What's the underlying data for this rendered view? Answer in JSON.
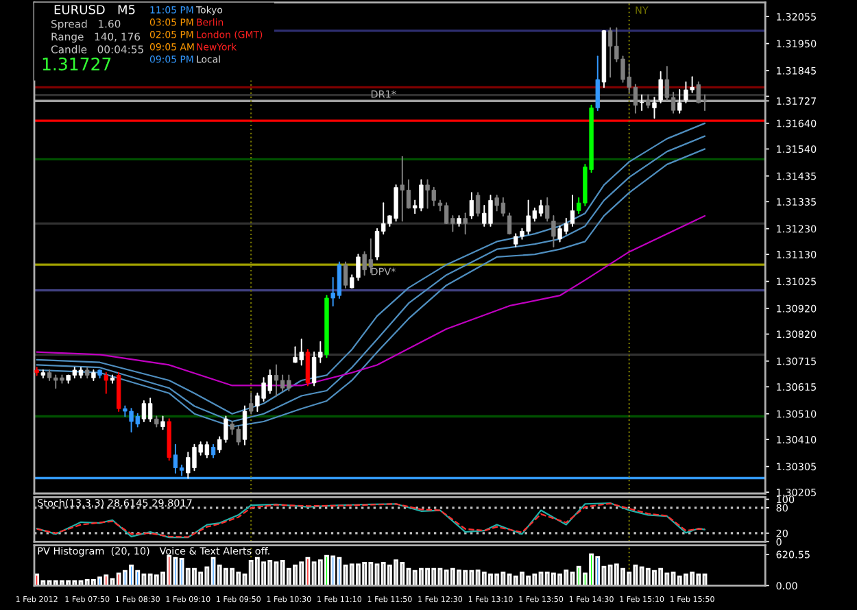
{
  "chart_data": [
    {
      "type": "candlestick",
      "tick_labels": "y",
      "annotations": [
        "EURUSD   M5",
        "Spread   1.60",
        "Range   140, 176",
        "Candle   00:04:55",
        "1.31727",
        "11:05 PM",
        "Tokyo",
        "03:05 PM",
        "Berlin",
        "02:05 PM",
        "London (GMT)",
        "09:05 AM",
        "NewYork",
        "09:05 PM",
        "Local"
      ],
      "x": [
        "2012-02-01T07:10",
        "2012-02-01T07:15",
        "2012-02-01T07:20",
        "2012-02-01T07:25",
        "2012-02-01T07:30",
        "2012-02-01T07:35",
        "2012-02-01T07:40",
        "2012-02-01T07:45",
        "2012-02-01T07:50",
        "2012-02-01T07:55",
        "2012-02-01T08:00",
        "2012-02-01T08:05",
        "2012-02-01T08:10",
        "2012-02-01T08:15",
        "2012-02-01T08:20",
        "2012-02-01T08:25",
        "2012-02-01T08:30",
        "2012-02-01T08:35",
        "2012-02-01T08:40",
        "2012-02-01T08:45",
        "2012-02-01T08:50",
        "2012-02-01T08:55",
        "2012-02-01T09:00",
        "2012-02-01T09:05",
        "2012-02-01T09:10",
        "2012-02-01T09:15",
        "2012-02-01T09:20",
        "2012-02-01T09:25",
        "2012-02-01T09:30",
        "2012-02-01T09:35",
        "2012-02-01T09:40",
        "2012-02-01T09:45",
        "2012-02-01T09:50",
        "2012-02-01T09:55",
        "2012-02-01T10:00",
        "2012-02-01T10:05",
        "2012-02-01T10:10",
        "2012-02-01T10:15",
        "2012-02-01T10:20",
        "2012-02-01T10:25",
        "2012-02-01T10:30",
        "2012-02-01T10:35",
        "2012-02-01T10:40",
        "2012-02-01T10:45",
        "2012-02-01T10:50",
        "2012-02-01T10:55",
        "2012-02-01T11:00",
        "2012-02-01T11:05",
        "2012-02-01T11:10",
        "2012-02-01T11:15",
        "2012-02-01T11:20",
        "2012-02-01T11:25",
        "2012-02-01T11:30",
        "2012-02-01T11:35",
        "2012-02-01T11:40",
        "2012-02-01T11:45",
        "2012-02-01T11:50",
        "2012-02-01T11:55",
        "2012-02-01T12:00",
        "2012-02-01T12:05",
        "2012-02-01T12:10",
        "2012-02-01T12:15",
        "2012-02-01T12:20",
        "2012-02-01T12:25",
        "2012-02-01T12:30",
        "2012-02-01T12:35",
        "2012-02-01T12:40",
        "2012-02-01T12:45",
        "2012-02-01T12:50",
        "2012-02-01T12:55",
        "2012-02-01T13:00",
        "2012-02-01T13:05",
        "2012-02-01T13:10",
        "2012-02-01T13:15",
        "2012-02-01T13:20",
        "2012-02-01T13:25",
        "2012-02-01T13:30",
        "2012-02-01T13:35",
        "2012-02-01T13:40",
        "2012-02-01T13:45",
        "2012-02-01T13:50",
        "2012-02-01T13:55",
        "2012-02-01T14:00",
        "2012-02-01T14:05",
        "2012-02-01T14:10",
        "2012-02-01T14:15",
        "2012-02-01T14:20",
        "2012-02-01T14:25",
        "2012-02-01T14:30",
        "2012-02-01T14:35",
        "2012-02-01T14:40",
        "2012-02-01T14:45",
        "2012-02-01T14:50",
        "2012-02-01T14:55",
        "2012-02-01T15:00",
        "2012-02-01T15:05",
        "2012-02-01T15:10",
        "2012-02-01T15:15",
        "2012-02-01T15:20",
        "2012-02-01T15:25",
        "2012-02-01T15:30",
        "2012-02-01T15:35",
        "2012-02-01T15:40",
        "2012-02-01T15:45",
        "2012-02-01T15:50",
        "2012-02-01T15:55",
        "2012-02-01T16:00"
      ],
      "ohlc": [
        [
          1.3068,
          1.3069,
          1.3066,
          1.3067
        ],
        [
          1.3066,
          1.3068,
          1.3065,
          1.3067
        ],
        [
          1.3067,
          1.3068,
          1.3064,
          1.3065
        ],
        [
          1.3065,
          1.3066,
          1.3061,
          1.3064
        ],
        [
          1.3065,
          1.3066,
          1.3063,
          1.3064
        ],
        [
          1.3064,
          1.3066,
          1.3063,
          1.3066
        ],
        [
          1.3066,
          1.3069,
          1.3065,
          1.3068
        ],
        [
          1.3066,
          1.3069,
          1.3065,
          1.3068
        ],
        [
          1.3068,
          1.3069,
          1.3065,
          1.3066
        ],
        [
          1.3065,
          1.3068,
          1.3064,
          1.3067
        ],
        [
          1.3068,
          1.3068,
          1.3065,
          1.3066
        ],
        [
          1.3066,
          1.3067,
          1.3059,
          1.3064
        ],
        [
          1.3064,
          1.3066,
          1.3063,
          1.3065
        ],
        [
          1.3066,
          1.3067,
          1.3052,
          1.3053
        ],
        [
          1.3053,
          1.3054,
          1.305,
          1.3052
        ],
        [
          1.3052,
          1.3053,
          1.3044,
          1.3048
        ],
        [
          1.305,
          1.3051,
          1.3046,
          1.3047
        ],
        [
          1.3049,
          1.3056,
          1.3048,
          1.3055
        ],
        [
          1.3049,
          1.3057,
          1.3048,
          1.3055
        ],
        [
          1.3049,
          1.305,
          1.3046,
          1.3047
        ],
        [
          1.3046,
          1.305,
          1.3045,
          1.3048
        ],
        [
          1.3048,
          1.3049,
          1.3033,
          1.3034
        ],
        [
          1.3035,
          1.3039,
          1.3028,
          1.303
        ],
        [
          1.303,
          1.3031,
          1.3027,
          1.3029
        ],
        [
          1.3028,
          1.3036,
          1.3026,
          1.3034
        ],
        [
          1.303,
          1.3039,
          1.3029,
          1.3038
        ],
        [
          1.3036,
          1.304,
          1.3035,
          1.3039
        ],
        [
          1.3035,
          1.304,
          1.3034,
          1.3039
        ],
        [
          1.3038,
          1.3039,
          1.3034,
          1.3035
        ],
        [
          1.3037,
          1.3042,
          1.3036,
          1.3041
        ],
        [
          1.3041,
          1.305,
          1.304,
          1.3049
        ],
        [
          1.3047,
          1.3048,
          1.3043,
          1.3045
        ],
        [
          1.3045,
          1.3046,
          1.3039,
          1.304
        ],
        [
          1.3041,
          1.3054,
          1.3039,
          1.3052
        ],
        [
          1.3055,
          1.3059,
          1.3051,
          1.3052
        ],
        [
          1.3054,
          1.3059,
          1.3052,
          1.3058
        ],
        [
          1.3057,
          1.3065,
          1.3056,
          1.3063
        ],
        [
          1.306,
          1.3068,
          1.3059,
          1.3066
        ],
        [
          1.3066,
          1.307,
          1.3058,
          1.3064
        ],
        [
          1.3064,
          1.3066,
          1.306,
          1.3061
        ],
        [
          1.3064,
          1.3066,
          1.306,
          1.3061
        ],
        [
          1.3071,
          1.3077,
          1.3071,
          1.3073
        ],
        [
          1.3072,
          1.308,
          1.307,
          1.3075
        ],
        [
          1.3075,
          1.3076,
          1.3062,
          1.3063
        ],
        [
          1.3063,
          1.3075,
          1.3062,
          1.3073
        ],
        [
          1.3073,
          1.3079,
          1.3071,
          1.3075
        ],
        [
          1.3074,
          1.3097,
          1.3073,
          1.3096
        ],
        [
          1.3096,
          1.3104,
          1.3093,
          1.3098
        ],
        [
          1.3097,
          1.311,
          1.3096,
          1.3109
        ],
        [
          1.3109,
          1.311,
          1.31,
          1.3101
        ],
        [
          1.31,
          1.3105,
          1.31,
          1.3104
        ],
        [
          1.3104,
          1.3113,
          1.3103,
          1.3112
        ],
        [
          1.3113,
          1.3114,
          1.3105,
          1.3107
        ],
        [
          1.3111,
          1.3119,
          1.3106,
          1.3108
        ],
        [
          1.3112,
          1.3123,
          1.3111,
          1.3122
        ],
        [
          1.3122,
          1.3133,
          1.3121,
          1.3125
        ],
        [
          1.3125,
          1.3128,
          1.3124,
          1.3128
        ],
        [
          1.3127,
          1.314,
          1.3126,
          1.3139
        ],
        [
          1.314,
          1.3151,
          1.3126,
          1.3138
        ],
        [
          1.3138,
          1.3142,
          1.3131,
          1.3131
        ],
        [
          1.3131,
          1.3134,
          1.3129,
          1.3132
        ],
        [
          1.3131,
          1.3142,
          1.313,
          1.314
        ],
        [
          1.314,
          1.3142,
          1.3131,
          1.3138
        ],
        [
          1.3138,
          1.3139,
          1.3132,
          1.3134
        ],
        [
          1.3133,
          1.3134,
          1.313,
          1.3132
        ],
        [
          1.3132,
          1.3133,
          1.3125,
          1.3125
        ],
        [
          1.3127,
          1.3128,
          1.3122,
          1.3125
        ],
        [
          1.3125,
          1.3128,
          1.3124,
          1.3127
        ],
        [
          1.3127,
          1.3129,
          1.3121,
          1.3125
        ],
        [
          1.3128,
          1.3137,
          1.3127,
          1.3134
        ],
        [
          1.3136,
          1.3137,
          1.3128,
          1.3129
        ],
        [
          1.3125,
          1.3132,
          1.3124,
          1.3129
        ],
        [
          1.3125,
          1.3136,
          1.3124,
          1.3134
        ],
        [
          1.3135,
          1.3136,
          1.313,
          1.3132
        ],
        [
          1.3133,
          1.3135,
          1.3128,
          1.3129
        ],
        [
          1.3128,
          1.3129,
          1.3121,
          1.3121
        ],
        [
          1.3117,
          1.3121,
          1.3116,
          1.312
        ],
        [
          1.312,
          1.3123,
          1.3119,
          1.3122
        ],
        [
          1.3122,
          1.3134,
          1.3121,
          1.3128
        ],
        [
          1.3127,
          1.3131,
          1.3126,
          1.313
        ],
        [
          1.3129,
          1.3134,
          1.3128,
          1.3132
        ],
        [
          1.3132,
          1.3135,
          1.3126,
          1.3127
        ],
        [
          1.3126,
          1.3128,
          1.3116,
          1.312
        ],
        [
          1.3119,
          1.3124,
          1.3118,
          1.3123
        ],
        [
          1.3122,
          1.3127,
          1.3121,
          1.3125
        ],
        [
          1.3125,
          1.3136,
          1.3124,
          1.313
        ],
        [
          1.313,
          1.3135,
          1.3129,
          1.3133
        ],
        [
          1.3133,
          1.3148,
          1.3132,
          1.3147
        ],
        [
          1.3146,
          1.3171,
          1.3145,
          1.317
        ],
        [
          1.317,
          1.319,
          1.3169,
          1.3181
        ],
        [
          1.318,
          1.32,
          1.3178,
          1.32
        ],
        [
          1.32,
          1.3201,
          1.3182,
          1.3194
        ],
        [
          1.3194,
          1.3201,
          1.3188,
          1.3189
        ],
        [
          1.3189,
          1.319,
          1.318,
          1.3181
        ],
        [
          1.3182,
          1.3187,
          1.3176,
          1.3178
        ],
        [
          1.3178,
          1.3179,
          1.3168,
          1.3171
        ],
        [
          1.3172,
          1.3175,
          1.3169,
          1.3172
        ],
        [
          1.3173,
          1.3175,
          1.317,
          1.3171
        ],
        [
          1.317,
          1.3174,
          1.3166,
          1.3172
        ],
        [
          1.3173,
          1.3184,
          1.3172,
          1.3181
        ],
        [
          1.3181,
          1.3186,
          1.3173,
          1.3174
        ],
        [
          1.3174,
          1.3176,
          1.3168,
          1.3169
        ],
        [
          1.3169,
          1.3177,
          1.3168,
          1.3172
        ],
        [
          1.3173,
          1.318,
          1.3172,
          1.3177
        ],
        [
          1.3177,
          1.3182,
          1.3176,
          1.3178
        ],
        [
          1.3179,
          1.318,
          1.3172,
          1.3172
        ],
        [
          1.3173,
          1.3175,
          1.3169,
          1.31727
        ]
      ],
      "colors": [
        "#ff0000",
        "#ffffff",
        "#808080",
        "#808080",
        "#808080",
        "#ffffff",
        "#ffffff",
        "#ffffff",
        "#808080",
        "#ffffff",
        "#3399ff",
        "#ff0000",
        "#ffffff",
        "#ff0000",
        "#3399ff",
        "#3399ff",
        "#3399ff",
        "#ffffff",
        "#ffffff",
        "#808080",
        "#ffffff",
        "#ff0000",
        "#3399ff",
        "#3399ff",
        "#ffffff",
        "#ffffff",
        "#ffffff",
        "#ffffff",
        "#3399ff",
        "#ffffff",
        "#ffffff",
        "#808080",
        "#808080",
        "#ffffff",
        "#808080",
        "#ffffff",
        "#ffffff",
        "#ffffff",
        "#808080",
        "#808080",
        "#808080",
        "#ffffff",
        "#ffffff",
        "#ff0000",
        "#ffffff",
        "#ffffff",
        "#00ff00",
        "#3399ff",
        "#3399ff",
        "#808080",
        "#ffffff",
        "#ffffff",
        "#808080",
        "#808080",
        "#ffffff",
        "#ffffff",
        "#ffffff",
        "#ffffff",
        "#808080",
        "#808080",
        "#ffffff",
        "#ffffff",
        "#808080",
        "#808080",
        "#808080",
        "#808080",
        "#808080",
        "#ffffff",
        "#808080",
        "#ffffff",
        "#808080",
        "#ffffff",
        "#ffffff",
        "#808080",
        "#808080",
        "#808080",
        "#ffffff",
        "#ffffff",
        "#ffffff",
        "#ffffff",
        "#ffffff",
        "#808080",
        "#808080",
        "#ffffff",
        "#ffffff",
        "#ffffff",
        "#00ff00",
        "#00ff00",
        "#00ff00",
        "#3399ff",
        "#ffffff",
        "#808080",
        "#808080",
        "#808080",
        "#808080",
        "#808080",
        "#ffffff",
        "#808080",
        "#ffffff",
        "#ffffff",
        "#808080",
        "#808080",
        "#ffffff",
        "#ffffff",
        "#ffffff",
        "#808080",
        "#808080"
      ],
      "series": [
        {
          "type": "line",
          "color": "#4f8fc0",
          "x": [
            "2012-02-01T07:10",
            "2012-02-01T08:00",
            "2012-02-01T08:55",
            "2012-02-01T09:15",
            "2012-02-01T09:45",
            "2012-02-01T10:10",
            "2012-02-01T10:40",
            "2012-02-01T11:00",
            "2012-02-01T11:20",
            "2012-02-01T11:40",
            "2012-02-01T12:05",
            "2012-02-01T12:35",
            "2012-02-01T13:15",
            "2012-02-01T13:45",
            "2012-02-01T14:05",
            "2012-02-01T14:25",
            "2012-02-01T14:40",
            "2012-02-01T15:00",
            "2012-02-01T15:30",
            "2012-02-01T16:00"
          ],
          "values": [
            1.3072,
            1.3071,
            1.3064,
            1.3059,
            1.3051,
            1.3055,
            1.3064,
            1.3066,
            1.3076,
            1.3089,
            1.31,
            1.3109,
            1.3118,
            1.3121,
            1.3124,
            1.3129,
            1.314,
            1.3149,
            1.3158,
            1.3164
          ]
        },
        {
          "type": "line",
          "color": "#4f8fc0",
          "x": [
            "2012-02-01T07:10",
            "2012-02-01T08:00",
            "2012-02-01T08:55",
            "2012-02-01T09:15",
            "2012-02-01T09:45",
            "2012-02-01T10:10",
            "2012-02-01T10:40",
            "2012-02-01T11:00",
            "2012-02-01T11:20",
            "2012-02-01T11:40",
            "2012-02-01T12:05",
            "2012-02-01T12:35",
            "2012-02-01T13:15",
            "2012-02-01T13:45",
            "2012-02-01T14:05",
            "2012-02-01T14:25",
            "2012-02-01T14:40",
            "2012-02-01T15:00",
            "2012-02-01T15:30",
            "2012-02-01T16:00"
          ],
          "values": [
            1.307,
            1.3069,
            1.3061,
            1.3054,
            1.3048,
            1.3051,
            1.3058,
            1.306,
            1.3069,
            1.308,
            1.3094,
            1.3105,
            1.3115,
            1.3117,
            1.3119,
            1.3124,
            1.3134,
            1.3143,
            1.3153,
            1.3159
          ]
        },
        {
          "type": "line",
          "color": "#4f8fc0",
          "x": [
            "2012-02-01T07:10",
            "2012-02-01T08:00",
            "2012-02-01T08:55",
            "2012-02-01T09:15",
            "2012-02-01T09:45",
            "2012-02-01T10:10",
            "2012-02-01T10:40",
            "2012-02-01T11:00",
            "2012-02-01T11:20",
            "2012-02-01T11:40",
            "2012-02-01T12:05",
            "2012-02-01T12:35",
            "2012-02-01T13:15",
            "2012-02-01T13:45",
            "2012-02-01T14:05",
            "2012-02-01T14:25",
            "2012-02-01T14:40",
            "2012-02-01T15:00",
            "2012-02-01T15:30",
            "2012-02-01T16:00"
          ],
          "values": [
            1.3068,
            1.3067,
            1.3059,
            1.3051,
            1.3046,
            1.3048,
            1.3053,
            1.3056,
            1.3064,
            1.3075,
            1.3088,
            1.3101,
            1.3112,
            1.3113,
            1.3115,
            1.3118,
            1.3128,
            1.3137,
            1.3148,
            1.3154
          ]
        },
        {
          "type": "line",
          "color": "#c000c0",
          "x": [
            "2012-02-01T07:10",
            "2012-02-01T08:00",
            "2012-02-01T08:55",
            "2012-02-01T09:45",
            "2012-02-01T10:10",
            "2012-02-01T10:40",
            "2012-02-01T11:20",
            "2012-02-01T11:40",
            "2012-02-01T12:35",
            "2012-02-01T13:25",
            "2012-02-01T14:05",
            "2012-02-01T14:25",
            "2012-02-01T15:00",
            "2012-02-01T16:00"
          ],
          "values": [
            1.3075,
            1.3074,
            1.307,
            1.3062,
            1.3062,
            1.3062,
            1.3067,
            1.307,
            1.3084,
            1.3093,
            1.3097,
            1.3103,
            1.3114,
            1.3128
          ]
        }
      ],
      "ref_lines": [
        {
          "axis": "y",
          "value": 1.32,
          "color": "#2e2e70"
        },
        {
          "axis": "y",
          "value": 1.3178,
          "color": "#800000",
          "label": "DR1*"
        },
        {
          "axis": "y",
          "value": 1.3175,
          "color": "#303030"
        },
        {
          "axis": "y",
          "value": 1.31727,
          "color": "#a0a0a0"
        },
        {
          "axis": "y",
          "value": 1.3165,
          "color": "#ff0000"
        },
        {
          "axis": "y",
          "value": 1.315,
          "color": "#005000"
        },
        {
          "axis": "y",
          "value": 1.3125,
          "color": "#303030"
        },
        {
          "axis": "y",
          "value": 1.3109,
          "color": "#a0a000",
          "label": "DPV*"
        },
        {
          "axis": "y",
          "value": 1.3099,
          "color": "#404080"
        },
        {
          "axis": "y",
          "value": 1.3074,
          "color": "#303030"
        },
        {
          "axis": "y",
          "value": 1.305,
          "color": "#005000"
        },
        {
          "axis": "y",
          "value": 1.3026,
          "color": "#3399ff"
        },
        {
          "axis": "x",
          "value": "2012-02-01T10:00",
          "color": "#707000",
          "line_style": "dotted"
        },
        {
          "axis": "x",
          "value": "2012-02-01T15:00",
          "color": "#707000",
          "line_style": "dotted",
          "label": "NY"
        }
      ],
      "xlim": [
        "2012-02-01T07:08",
        "2012-02-01T16:48"
      ],
      "ylim": [
        1.302,
        1.3211
      ],
      "yticks": [
        {
          "value": 1.32055,
          "label": "1.32055"
        },
        {
          "value": 1.3195,
          "label": "1.31950"
        },
        {
          "value": 1.31845,
          "label": "1.31845"
        },
        {
          "value": 1.31745,
          "label": null
        },
        {
          "value": 1.31727,
          "label": "1.31727"
        },
        {
          "value": 1.3164,
          "label": "1.31640"
        },
        {
          "value": 1.3154,
          "label": "1.31540"
        },
        {
          "value": 1.31435,
          "label": "1.31435"
        },
        {
          "value": 1.31335,
          "label": "1.31335"
        },
        {
          "value": 1.3123,
          "label": "1.31230"
        },
        {
          "value": 1.3113,
          "label": "1.31130"
        },
        {
          "value": 1.31025,
          "label": "1.31025"
        },
        {
          "value": 1.3092,
          "label": "1.30920"
        },
        {
          "value": 1.3082,
          "label": "1.30820"
        },
        {
          "value": 1.30715,
          "label": "1.30715"
        },
        {
          "value": 1.30615,
          "label": "1.30615"
        },
        {
          "value": 1.3051,
          "label": "1.30510"
        },
        {
          "value": 1.3041,
          "label": "1.30410"
        },
        {
          "value": 1.30305,
          "label": "1.30305"
        },
        {
          "value": 1.30205,
          "label": "1.30205"
        }
      ]
    },
    {
      "type": "line",
      "title": "Stoch(13,3,3) 28.6145 29.8017",
      "tick_labels": "y",
      "series": [
        {
          "color": "#20b2aa",
          "line_style": "solid",
          "x": [
            "2012-02-01T07:10",
            "2012-02-01T07:25",
            "2012-02-01T07:45",
            "2012-02-01T08:00",
            "2012-02-01T08:10",
            "2012-02-01T08:25",
            "2012-02-01T08:40",
            "2012-02-01T08:55",
            "2012-02-01T09:10",
            "2012-02-01T09:25",
            "2012-02-01T09:35",
            "2012-02-01T09:50",
            "2012-02-01T10:00",
            "2012-02-01T10:20",
            "2012-02-01T10:45",
            "2012-02-01T11:10",
            "2012-02-01T11:35",
            "2012-02-01T11:55",
            "2012-02-01T12:15",
            "2012-02-01T12:30",
            "2012-02-01T12:50",
            "2012-02-01T13:05",
            "2012-02-01T13:15",
            "2012-02-01T13:35",
            "2012-02-01T13:50",
            "2012-02-01T14:10",
            "2012-02-01T14:25",
            "2012-02-01T14:45",
            "2012-02-01T15:00",
            "2012-02-01T15:15",
            "2012-02-01T15:30",
            "2012-02-01T15:45",
            "2012-02-01T15:55",
            "2012-02-01T16:00"
          ],
          "values": [
            31,
            18,
            46,
            44,
            51,
            12,
            23,
            10,
            10,
            40,
            44,
            63,
            86,
            88,
            82,
            86,
            88,
            89,
            72,
            74,
            23,
            26,
            40,
            18,
            74,
            40,
            89,
            91,
            74,
            63,
            60,
            21,
            31,
            28.6145
          ]
        },
        {
          "color": "#ff3030",
          "line_style": "dashed",
          "x": [
            "2012-02-01T07:10",
            "2012-02-01T07:25",
            "2012-02-01T07:45",
            "2012-02-01T08:00",
            "2012-02-01T08:10",
            "2012-02-01T08:25",
            "2012-02-01T08:40",
            "2012-02-01T08:55",
            "2012-02-01T09:10",
            "2012-02-01T09:25",
            "2012-02-01T09:35",
            "2012-02-01T09:50",
            "2012-02-01T10:00",
            "2012-02-01T10:20",
            "2012-02-01T10:45",
            "2012-02-01T11:10",
            "2012-02-01T11:35",
            "2012-02-01T11:55",
            "2012-02-01T12:15",
            "2012-02-01T12:30",
            "2012-02-01T12:50",
            "2012-02-01T13:05",
            "2012-02-01T13:15",
            "2012-02-01T13:35",
            "2012-02-01T13:50",
            "2012-02-01T14:10",
            "2012-02-01T14:25",
            "2012-02-01T14:45",
            "2012-02-01T15:00",
            "2012-02-01T15:15",
            "2012-02-01T15:30",
            "2012-02-01T15:45",
            "2012-02-01T15:55",
            "2012-02-01T16:00"
          ],
          "values": [
            30,
            20,
            40,
            45,
            48,
            18,
            20,
            12,
            11,
            35,
            42,
            58,
            80,
            87,
            84,
            85,
            87,
            89,
            76,
            74,
            30,
            26,
            35,
            22,
            65,
            45,
            82,
            90,
            78,
            66,
            61,
            26,
            30,
            29.8017
          ]
        }
      ],
      "ref_lines": [
        {
          "axis": "y",
          "value": 80,
          "color": "#c0c0c0",
          "line_style": "dotted"
        },
        {
          "axis": "y",
          "value": 20,
          "color": "#c0c0c0",
          "line_style": "dotted"
        },
        {
          "axis": "x",
          "value": "2012-02-01T10:00",
          "color": "#707000",
          "line_style": "dotted"
        },
        {
          "axis": "x",
          "value": "2012-02-01T15:00",
          "color": "#707000",
          "line_style": "dotted"
        }
      ],
      "xlim": [
        "2012-02-01T07:08",
        "2012-02-01T16:48"
      ],
      "ylim": [
        0,
        105
      ],
      "yticks": [
        100,
        80,
        20,
        0
      ]
    },
    {
      "type": "bar",
      "title": "PV Histogram  (20, 10)   Voice & Text Alerts off.",
      "x": [
        "2012-02-01T07:10",
        "2012-02-01T07:15",
        "2012-02-01T07:20",
        "2012-02-01T07:25",
        "2012-02-01T07:30",
        "2012-02-01T07:35",
        "2012-02-01T07:40",
        "2012-02-01T07:45",
        "2012-02-01T07:50",
        "2012-02-01T07:55",
        "2012-02-01T08:00",
        "2012-02-01T08:05",
        "2012-02-01T08:10",
        "2012-02-01T08:15",
        "2012-02-01T08:20",
        "2012-02-01T08:25",
        "2012-02-01T08:30",
        "2012-02-01T08:35",
        "2012-02-01T08:40",
        "2012-02-01T08:45",
        "2012-02-01T08:50",
        "2012-02-01T08:55",
        "2012-02-01T09:00",
        "2012-02-01T09:05",
        "2012-02-01T09:10",
        "2012-02-01T09:15",
        "2012-02-01T09:20",
        "2012-02-01T09:25",
        "2012-02-01T09:30",
        "2012-02-01T09:35",
        "2012-02-01T09:40",
        "2012-02-01T09:45",
        "2012-02-01T09:50",
        "2012-02-01T09:55",
        "2012-02-01T10:00",
        "2012-02-01T10:05",
        "2012-02-01T10:10",
        "2012-02-01T10:15",
        "2012-02-01T10:20",
        "2012-02-01T10:25",
        "2012-02-01T10:30",
        "2012-02-01T10:35",
        "2012-02-01T10:40",
        "2012-02-01T10:45",
        "2012-02-01T10:50",
        "2012-02-01T10:55",
        "2012-02-01T11:00",
        "2012-02-01T11:05",
        "2012-02-01T11:10",
        "2012-02-01T11:15",
        "2012-02-01T11:20",
        "2012-02-01T11:25",
        "2012-02-01T11:30",
        "2012-02-01T11:35",
        "2012-02-01T11:40",
        "2012-02-01T11:45",
        "2012-02-01T11:50",
        "2012-02-01T11:55",
        "2012-02-01T12:00",
        "2012-02-01T12:05",
        "2012-02-01T12:10",
        "2012-02-01T12:15",
        "2012-02-01T12:20",
        "2012-02-01T12:25",
        "2012-02-01T12:30",
        "2012-02-01T12:35",
        "2012-02-01T12:40",
        "2012-02-01T12:45",
        "2012-02-01T12:50",
        "2012-02-01T12:55",
        "2012-02-01T13:00",
        "2012-02-01T13:05",
        "2012-02-01T13:10",
        "2012-02-01T13:15",
        "2012-02-01T13:20",
        "2012-02-01T13:25",
        "2012-02-01T13:30",
        "2012-02-01T13:35",
        "2012-02-01T13:40",
        "2012-02-01T13:45",
        "2012-02-01T13:50",
        "2012-02-01T13:55",
        "2012-02-01T14:00",
        "2012-02-01T14:05",
        "2012-02-01T14:10",
        "2012-02-01T14:15",
        "2012-02-01T14:20",
        "2012-02-01T14:25",
        "2012-02-01T14:30",
        "2012-02-01T14:35",
        "2012-02-01T14:40",
        "2012-02-01T14:45",
        "2012-02-01T14:50",
        "2012-02-01T14:55",
        "2012-02-01T15:00",
        "2012-02-01T15:05",
        "2012-02-01T15:10",
        "2012-02-01T15:15",
        "2012-02-01T15:20",
        "2012-02-01T15:25",
        "2012-02-01T15:30",
        "2012-02-01T15:35",
        "2012-02-01T15:40",
        "2012-02-01T15:45",
        "2012-02-01T15:50",
        "2012-02-01T15:55",
        "2012-02-01T16:00"
      ],
      "values": [
        220,
        90,
        90,
        90,
        90,
        90,
        90,
        90,
        110,
        110,
        160,
        200,
        130,
        240,
        290,
        400,
        290,
        220,
        220,
        200,
        260,
        590,
        550,
        530,
        330,
        330,
        260,
        360,
        550,
        400,
        330,
        330,
        260,
        220,
        490,
        550,
        460,
        490,
        460,
        490,
        330,
        400,
        460,
        550,
        460,
        500,
        590,
        580,
        550,
        400,
        420,
        420,
        450,
        450,
        420,
        450,
        400,
        500,
        450,
        330,
        290,
        330,
        330,
        330,
        330,
        300,
        330,
        300,
        290,
        290,
        300,
        260,
        220,
        220,
        260,
        220,
        180,
        260,
        180,
        220,
        260,
        260,
        240,
        220,
        300,
        260,
        370,
        240,
        620.55,
        570,
        370,
        400,
        420,
        330,
        260,
        400,
        360,
        330,
        290,
        330,
        240,
        260,
        180,
        220,
        260,
        220,
        220
      ],
      "colors": [
        "#ff0000",
        "#808080",
        "#808080",
        "#808080",
        "#808080",
        "#808080",
        "#808080",
        "#808080",
        "#808080",
        "#808080",
        "#3399ff",
        "#ff0000",
        "#808080",
        "#ff0000",
        "#3399ff",
        "#3399ff",
        "#3399ff",
        "#808080",
        "#808080",
        "#808080",
        "#808080",
        "#ff0000",
        "#3399ff",
        "#3399ff",
        "#808080",
        "#808080",
        "#808080",
        "#808080",
        "#3399ff",
        "#808080",
        "#808080",
        "#808080",
        "#808080",
        "#808080",
        "#808080",
        "#808080",
        "#808080",
        "#808080",
        "#808080",
        "#808080",
        "#808080",
        "#808080",
        "#808080",
        "#ff0000",
        "#808080",
        "#808080",
        "#00ff00",
        "#3399ff",
        "#3399ff",
        "#808080",
        "#808080",
        "#808080",
        "#808080",
        "#808080",
        "#808080",
        "#808080",
        "#808080",
        "#808080",
        "#808080",
        "#808080",
        "#808080",
        "#808080",
        "#808080",
        "#808080",
        "#808080",
        "#808080",
        "#808080",
        "#808080",
        "#808080",
        "#808080",
        "#808080",
        "#808080",
        "#808080",
        "#808080",
        "#808080",
        "#808080",
        "#808080",
        "#808080",
        "#808080",
        "#808080",
        "#808080",
        "#808080",
        "#808080",
        "#808080",
        "#808080",
        "#808080",
        "#00ff00",
        "#00ff00",
        "#00ff00",
        "#3399ff",
        "#808080",
        "#808080",
        "#808080",
        "#808080",
        "#808080",
        "#808080",
        "#808080",
        "#808080",
        "#808080",
        "#808080",
        "#808080",
        "#808080",
        "#808080",
        "#808080",
        "#808080",
        "#808080",
        "#808080"
      ],
      "ref_lines": [
        {
          "axis": "x",
          "value": "2012-02-01T10:00",
          "color": "#707000",
          "line_style": "dotted"
        },
        {
          "axis": "x",
          "value": "2012-02-01T15:00",
          "color": "#707000",
          "line_style": "dotted"
        }
      ],
      "xlim": [
        "2012-02-01T07:08",
        "2012-02-01T16:48"
      ],
      "xticks": [
        {
          "value": "2012-02-01T07:10",
          "label": "1 Feb 2012"
        },
        {
          "value": "2012-02-01T07:50",
          "label": "1 Feb 07:50"
        },
        {
          "value": "2012-02-01T08:30",
          "label": "1 Feb 08:30"
        },
        {
          "value": "2012-02-01T09:10",
          "label": "1 Feb 09:10"
        },
        {
          "value": "2012-02-01T09:50",
          "label": "1 Feb 09:50"
        },
        {
          "value": "2012-02-01T10:30",
          "label": "1 Feb 10:30"
        },
        {
          "value": "2012-02-01T11:10",
          "label": "1 Feb 11:10"
        },
        {
          "value": "2012-02-01T11:50",
          "label": "1 Feb 11:50"
        },
        {
          "value": "2012-02-01T12:30",
          "label": "1 Feb 12:30"
        },
        {
          "value": "2012-02-01T13:10",
          "label": "1 Feb 13:10"
        },
        {
          "value": "2012-02-01T13:50",
          "label": "1 Feb 13:50"
        },
        {
          "value": "2012-02-01T14:30",
          "label": "1 Feb 14:30"
        },
        {
          "value": "2012-02-01T15:10",
          "label": "1 Feb 15:10"
        },
        {
          "value": "2012-02-01T15:50",
          "label": "1 Feb 15:50"
        }
      ],
      "ylim": [
        0,
        800
      ],
      "yticks": [
        {
          "value": 620.55,
          "label": "620.55"
        },
        {
          "value": 0,
          "label": "0.00"
        }
      ]
    }
  ]
}
